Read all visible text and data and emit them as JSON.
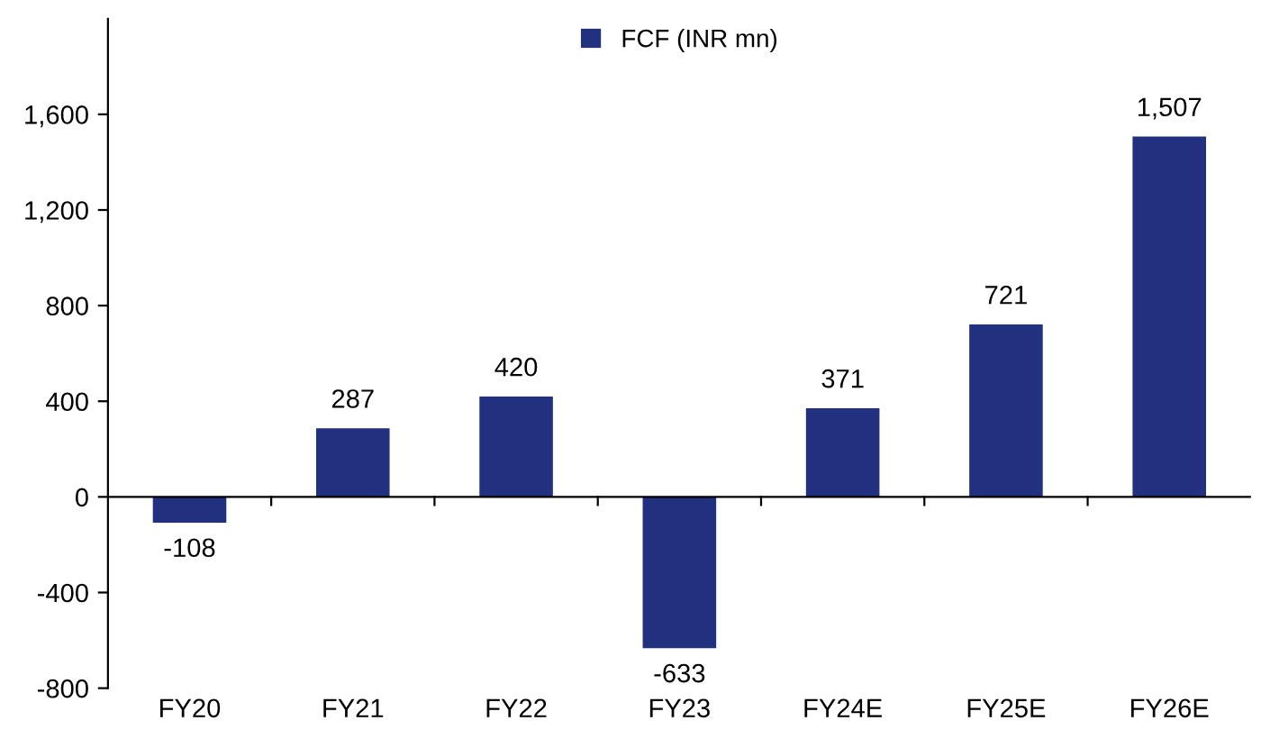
{
  "chart_data": {
    "type": "bar",
    "categories": [
      "FY20",
      "FY21",
      "FY22",
      "FY23",
      "FY24E",
      "FY25E",
      "FY26E"
    ],
    "series": [
      {
        "name": "FCF (INR mn)",
        "color": "#22317f",
        "values": [
          -108,
          287,
          420,
          -633,
          371,
          721,
          1507
        ]
      }
    ],
    "ylim": [
      -800,
      2000
    ],
    "yticks": [
      {
        "value": -800,
        "label": "-800"
      },
      {
        "value": -400,
        "label": "-400"
      },
      0,
      {
        "value": 400,
        "label": "400"
      },
      {
        "value": 800,
        "label": "800"
      },
      {
        "value": 1200,
        "label": "1,200"
      },
      {
        "value": 1600,
        "label": "1,600"
      }
    ],
    "value_labels": [
      "-108",
      "287",
      "420",
      "-633",
      "371",
      "721",
      "1,507"
    ],
    "legend": "top"
  }
}
